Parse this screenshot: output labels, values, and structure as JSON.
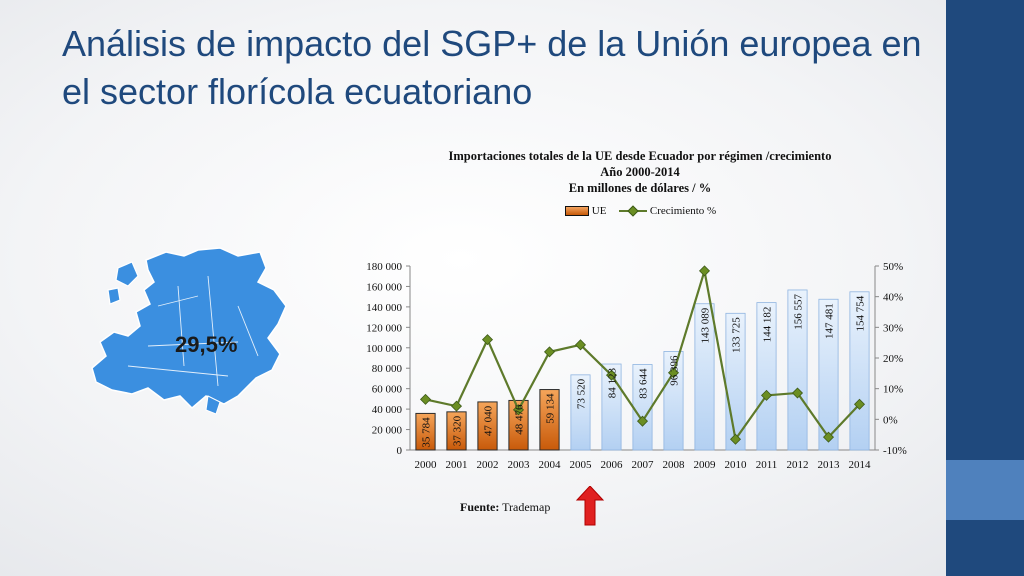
{
  "slide": {
    "title": "Análisis de impacto del SGP+ de la Unión europea en el sector florícola ecuatoriano",
    "map_percentage": "29,5%",
    "source_label": "Fuente:",
    "source_value": "Trademap"
  },
  "colors": {
    "title": "#1f497d",
    "band": "#1f497d",
    "bar_orange": "#e07b1e",
    "bar_blue": "#c6dcf5",
    "line_green": "#6b8e23",
    "map_blue": "#3b8fe0",
    "arrow_red": "#e02020"
  },
  "chart_data": {
    "type": "bar",
    "title_lines": [
      "Importaciones totales de la UE desde Ecuador por régimen /crecimiento",
      "Año 2000-2014",
      "En millones de dólares / %"
    ],
    "categories": [
      "2000",
      "2001",
      "2002",
      "2003",
      "2004",
      "2005",
      "2006",
      "2007",
      "2008",
      "2009",
      "2010",
      "2011",
      "2012",
      "2013",
      "2014"
    ],
    "series": [
      {
        "name": "UE",
        "type": "bar",
        "axis": "left",
        "values": [
          35784,
          37320,
          47040,
          48476,
          59134,
          73520,
          84123,
          83644,
          96396,
          143089,
          133725,
          144182,
          156557,
          147481,
          154754
        ],
        "labels": [
          "35 784",
          "37 320",
          "47 040",
          "48 476",
          "59 134",
          "73 520",
          "84 123",
          "83 644",
          "96 396",
          "143 089",
          "133 725",
          "144 182",
          "156 557",
          "147 481",
          "154 754"
        ],
        "highlight_until_index": 4
      },
      {
        "name": "Crecimiento %",
        "type": "line",
        "axis": "right",
        "values": [
          6.5,
          4.3,
          26.0,
          3.1,
          22.0,
          24.3,
          14.4,
          -0.6,
          15.2,
          48.4,
          -6.5,
          7.8,
          8.6,
          -5.8,
          4.9
        ]
      }
    ],
    "y_left": {
      "min": 0,
      "max": 180000,
      "step": 20000,
      "tick_labels": [
        "0",
        "20 000",
        "40 000",
        "60 000",
        "80 000",
        "100 000",
        "120 000",
        "140 000",
        "160 000",
        "180 000"
      ]
    },
    "y_right": {
      "min": -10,
      "max": 50,
      "step": 10,
      "tick_labels": [
        "-10%",
        "0%",
        "10%",
        "20%",
        "30%",
        "40%",
        "50%"
      ]
    },
    "legend_position": "top-center",
    "grid": false
  }
}
